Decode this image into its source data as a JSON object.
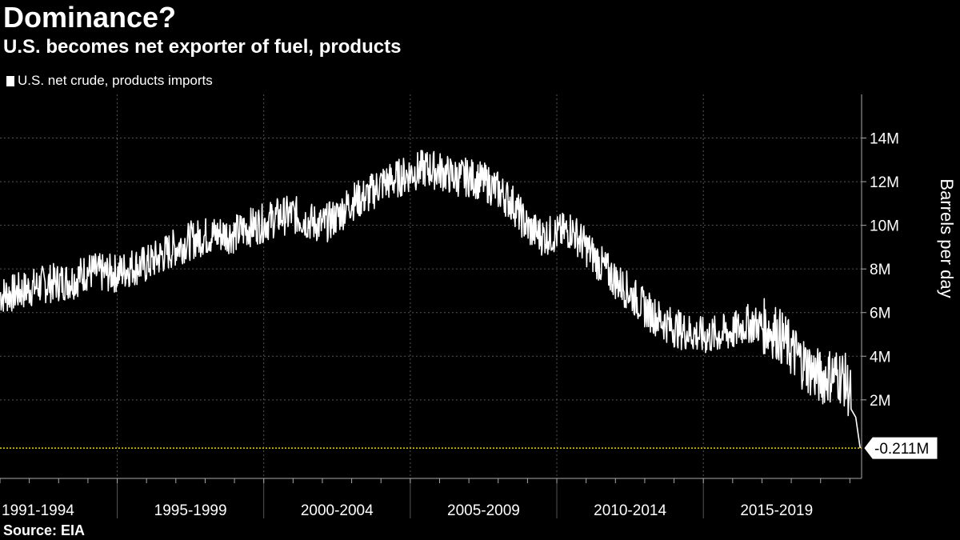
{
  "chart_data": {
    "type": "line",
    "title": "Dominance?",
    "subtitle": "U.S. becomes net exporter of fuel, products",
    "source": "Source: EIA",
    "ylabel": "Barrels per day",
    "xlabel": "",
    "legend": "top-left",
    "grid": true,
    "ylim": [
      -1.6,
      16
    ],
    "xlim": [
      1991.0,
      2020.4
    ],
    "y_ticks": [
      {
        "value": 2,
        "label": "2M"
      },
      {
        "value": 4,
        "label": "4M"
      },
      {
        "value": 6,
        "label": "6M"
      },
      {
        "value": 8,
        "label": "8M"
      },
      {
        "value": 10,
        "label": "10M"
      },
      {
        "value": 12,
        "label": "12M"
      },
      {
        "value": 14,
        "label": "14M"
      }
    ],
    "x_periods": [
      {
        "label": "1991-1994",
        "start": 1991,
        "end": 1995
      },
      {
        "label": "1995-1999",
        "start": 1995,
        "end": 2000
      },
      {
        "label": "2000-2004",
        "start": 2000,
        "end": 2005
      },
      {
        "label": "2005-2009",
        "start": 2005,
        "end": 2010
      },
      {
        "label": "2010-2014",
        "start": 2010,
        "end": 2015
      },
      {
        "label": "2015-2019",
        "start": 2015,
        "end": 2020
      }
    ],
    "reference_line": {
      "value": -0.211,
      "label": "-0.211M",
      "color": "#e8d000"
    },
    "series": [
      {
        "name": "U.S. net crude, products imports",
        "color": "#ffffff",
        "x": [
          1991.0,
          1991.5,
          1992.0,
          1992.5,
          1993.0,
          1993.5,
          1994.0,
          1994.5,
          1995.0,
          1995.5,
          1996.0,
          1996.5,
          1997.0,
          1997.5,
          1998.0,
          1998.5,
          1999.0,
          1999.5,
          2000.0,
          2000.5,
          2001.0,
          2001.5,
          2002.0,
          2002.5,
          2003.0,
          2003.5,
          2004.0,
          2004.5,
          2005.0,
          2005.5,
          2006.0,
          2006.5,
          2007.0,
          2007.5,
          2008.0,
          2008.5,
          2009.0,
          2009.5,
          2010.0,
          2010.5,
          2011.0,
          2011.5,
          2012.0,
          2012.5,
          2013.0,
          2013.5,
          2014.0,
          2014.5,
          2015.0,
          2015.5,
          2016.0,
          2016.5,
          2017.0,
          2017.5,
          2018.0,
          2018.5,
          2019.0,
          2019.5,
          2019.8,
          2020.0,
          2020.2,
          2020.35
        ],
        "values": [
          6.8,
          6.9,
          7.1,
          7.3,
          7.4,
          7.5,
          7.9,
          7.8,
          7.8,
          8.1,
          8.2,
          8.6,
          9.0,
          9.3,
          9.5,
          9.6,
          9.6,
          9.9,
          10.1,
          10.4,
          10.5,
          10.2,
          10.0,
          10.4,
          11.1,
          11.3,
          11.9,
          12.1,
          12.4,
          12.6,
          12.5,
          12.2,
          12.2,
          12.0,
          11.6,
          11.0,
          9.9,
          9.5,
          9.6,
          9.8,
          9.0,
          8.2,
          7.5,
          6.9,
          6.2,
          5.7,
          5.3,
          5.1,
          4.9,
          5.0,
          5.1,
          5.5,
          5.4,
          5.1,
          4.3,
          3.6,
          3.0,
          3.2,
          3.0,
          2.3,
          1.2,
          -0.211
        ]
      }
    ]
  }
}
